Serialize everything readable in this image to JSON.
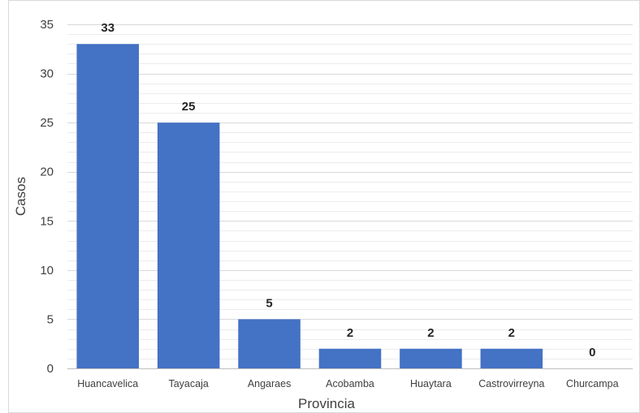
{
  "chart_data": {
    "type": "bar",
    "title": "",
    "xlabel": "Provincia",
    "ylabel": "Casos",
    "categories": [
      "Huancavelica",
      "Tayacaja",
      "Angaraes",
      "Acobamba",
      "Huaytara",
      "Castrovirreyna",
      "Churcampa"
    ],
    "values": [
      33,
      25,
      5,
      2,
      2,
      2,
      0
    ],
    "data_labels": [
      "33",
      "25",
      "5",
      "2",
      "2",
      "2",
      "0"
    ],
    "yticks": [
      "0",
      "5",
      "10",
      "15",
      "20",
      "25",
      "30",
      "35"
    ],
    "ylim": [
      0,
      35
    ],
    "minor_grid_step": 1,
    "grid": true,
    "legend": "none",
    "bar_color": "#4472C4"
  }
}
